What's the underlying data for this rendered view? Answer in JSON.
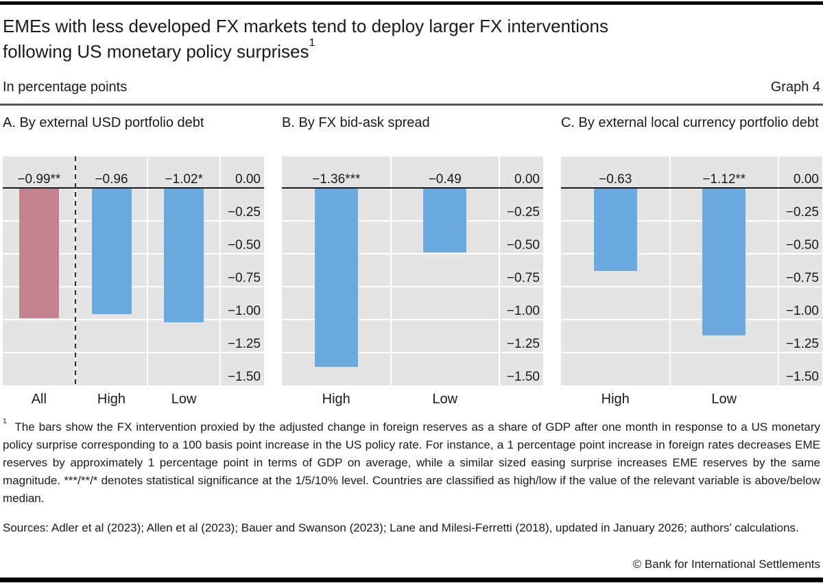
{
  "header": {
    "title_line1": "EMEs with less developed FX markets tend to deploy larger FX interventions",
    "title_line2": "following US monetary policy surprises",
    "title_footnote_marker": "1",
    "unit_label": "In percentage points",
    "graph_label": "Graph 4"
  },
  "colors": {
    "bar_primary": "#6aaade",
    "bar_highlight": "#c4828f",
    "plot_background": "#e5e4e5",
    "gridline": "#ffffff",
    "zero_line": "#1a1a1a",
    "dashed_divider": "#2a2a2a",
    "divider_rule": "#57585a",
    "frame_bar": "#000000",
    "text": "#1a1a1a"
  },
  "chart_data": [
    {
      "type": "bar",
      "title": "A. By external USD portfolio debt",
      "categories": [
        "All",
        "High",
        "Low"
      ],
      "values": [
        -0.99,
        -0.96,
        -1.02
      ],
      "bar_labels": [
        "−0.99**",
        "−0.96",
        "−1.02*"
      ],
      "bar_color_keys": [
        "highlight",
        "primary",
        "primary"
      ],
      "dashed_divider_after_first": true,
      "ylim": [
        -1.5,
        0.25
      ],
      "ytick_values": [
        0,
        -0.25,
        -0.5,
        -0.75,
        -1.0,
        -1.25,
        -1.5
      ],
      "ytick_labels": [
        "0.00",
        "−0.25",
        "−0.50",
        "−0.75",
        "−1.00",
        "−1.25",
        "−1.50"
      ],
      "grid": true,
      "legend": "none"
    },
    {
      "type": "bar",
      "title": "B. By FX bid-ask spread",
      "categories": [
        "High",
        "Low"
      ],
      "values": [
        -1.36,
        -0.49
      ],
      "bar_labels": [
        "−1.36***",
        "−0.49"
      ],
      "bar_color_keys": [
        "primary",
        "primary"
      ],
      "dashed_divider_after_first": false,
      "ylim": [
        -1.5,
        0.25
      ],
      "ytick_values": [
        0,
        -0.25,
        -0.5,
        -0.75,
        -1.0,
        -1.25,
        -1.5
      ],
      "ytick_labels": [
        "0.00",
        "−0.25",
        "−0.50",
        "−0.75",
        "−1.00",
        "−1.25",
        "−1.50"
      ],
      "grid": true,
      "legend": "none"
    },
    {
      "type": "bar",
      "title": "C. By external local currency portfolio debt",
      "categories": [
        "High",
        "Low"
      ],
      "values": [
        -0.63,
        -1.12
      ],
      "bar_labels": [
        "−0.63",
        "−1.12**"
      ],
      "bar_color_keys": [
        "primary",
        "primary"
      ],
      "dashed_divider_after_first": false,
      "ylim": [
        -1.5,
        0.25
      ],
      "ytick_values": [
        0,
        -0.25,
        -0.5,
        -0.75,
        -1.0,
        -1.25,
        -1.5
      ],
      "ytick_labels": [
        "0.00",
        "−0.25",
        "−0.50",
        "−0.75",
        "−1.00",
        "−1.25",
        "−1.50"
      ],
      "grid": true,
      "legend": "none"
    }
  ],
  "footnote": {
    "marker": "1",
    "text": "The bars show the FX intervention proxied by the adjusted change in foreign reserves as a share of GDP after one month in response to a US monetary policy surprise corresponding to a 100 basis point increase in the US policy rate. For instance, a 1 percentage point increase in foreign rates decreases EME reserves by approximately 1 percentage point in terms of GDP on average, while a similar sized easing surprise increases EME reserves by the same magnitude. ***/**/* denotes statistical significance at the 1/5/10% level. Countries are classified as high/low if the value of the relevant variable is above/below median."
  },
  "sources": "Sources: Adler et al (2023); Allen et al (2023); Bauer and Swanson (2023); Lane and Milesi-Ferretti (2018), updated in January 2026; authors’ calculations.",
  "copyright": "© Bank for International Settlements"
}
